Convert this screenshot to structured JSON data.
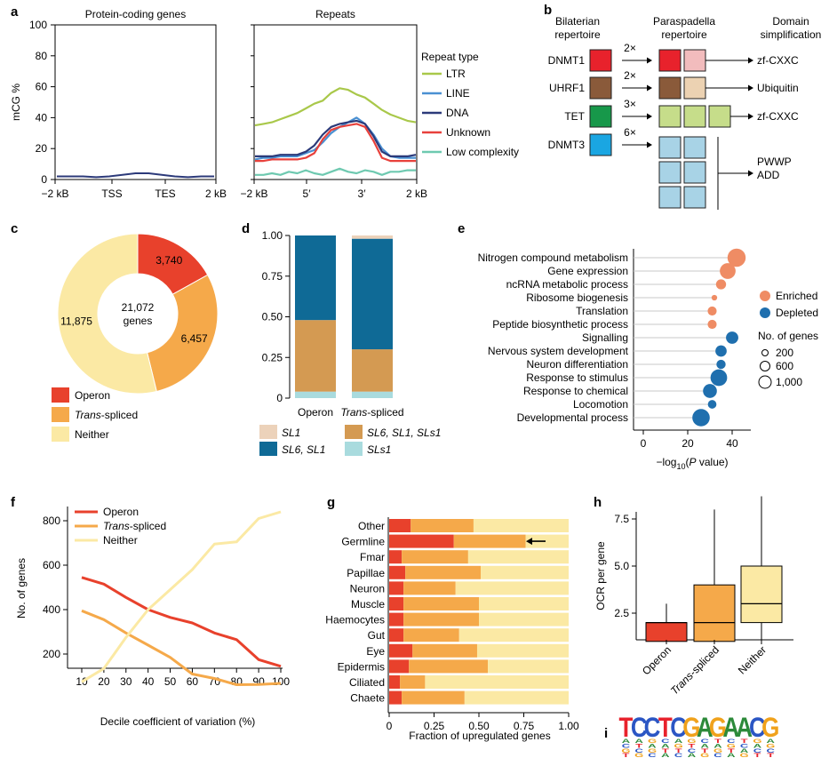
{
  "panel_labels": [
    "a",
    "b",
    "c",
    "d",
    "e",
    "f",
    "g",
    "h",
    "i"
  ],
  "chart_data": [
    {
      "id": "a1",
      "type": "line",
      "title": "Protein-coding genes",
      "ylabel": "mCG %",
      "ylim": [
        0,
        100
      ],
      "yticks": [
        0,
        20,
        40,
        60,
        80,
        100
      ],
      "xticklabels": [
        "−2 kB",
        "TSS",
        "TES",
        "2 kB"
      ],
      "series": [
        {
          "color": "#2c3a7a",
          "values": [
            2,
            2,
            2,
            1.5,
            2,
            3,
            4,
            4,
            3,
            2,
            1.5,
            2,
            2
          ]
        }
      ]
    },
    {
      "id": "a2",
      "type": "line",
      "title": "Repeats",
      "ylim": [
        0,
        100
      ],
      "xticklabels": [
        "−2 kB",
        "5′",
        "3′",
        "2 kB"
      ],
      "legend_title": "Repeat type",
      "series": [
        {
          "name": "LTR",
          "color": "#a9c84a",
          "values": [
            35,
            36,
            37,
            39,
            41,
            43,
            46,
            49,
            51,
            56,
            59,
            58,
            55,
            53,
            49,
            45,
            42,
            40,
            38,
            37
          ]
        },
        {
          "name": "LINE",
          "color": "#4a90d2",
          "values": [
            13,
            14,
            14,
            15,
            15,
            15,
            17,
            19,
            24,
            30,
            34,
            37,
            40,
            36,
            29,
            20,
            15,
            14,
            14,
            14
          ]
        },
        {
          "name": "DNA",
          "color": "#2c3a7a",
          "values": [
            15,
            15,
            15,
            16,
            16,
            16,
            18,
            22,
            29,
            34,
            36,
            37,
            38,
            36,
            28,
            18,
            15,
            15,
            15,
            16
          ]
        },
        {
          "name": "Unknown",
          "color": "#e8413c",
          "values": [
            12,
            12,
            13,
            13,
            13,
            13,
            14,
            17,
            26,
            32,
            34,
            35,
            36,
            34,
            25,
            14,
            12,
            12,
            12,
            12
          ]
        },
        {
          "name": "Low complexity",
          "color": "#6ec9b0",
          "values": [
            3,
            3,
            4,
            3,
            5,
            4,
            6,
            4,
            3,
            5,
            7,
            5,
            4,
            6,
            5,
            3,
            5,
            5,
            6,
            6
          ]
        }
      ]
    },
    {
      "id": "c",
      "type": "pie",
      "center_lines": [
        "21,072",
        "genes"
      ],
      "slices": [
        {
          "name": "Operon",
          "value": 3740,
          "label": "3,740",
          "color": "#e8412c"
        },
        {
          "name": "Trans-spliced",
          "value": 6457,
          "label": "6,457",
          "color": "#f5a94a"
        },
        {
          "name": "Neither",
          "value": 11875,
          "label": "11,875",
          "color": "#fbe9a4"
        }
      ],
      "legend": [
        {
          "name": "Operon",
          "color": "#e8412c"
        },
        {
          "name_italic": "Trans",
          "name_rest": "-spliced",
          "color": "#f5a94a"
        },
        {
          "name": "Neither",
          "color": "#fbe9a4"
        }
      ]
    },
    {
      "id": "d",
      "type": "bar",
      "stacked": true,
      "categories": [
        "Operon",
        "Trans-spliced"
      ],
      "ylim": [
        0,
        1
      ],
      "yticks": [
        "0",
        "0.25",
        "0.50",
        "0.75",
        "1.00"
      ],
      "series": [
        {
          "name": "SLs1",
          "color": "#a9dbde",
          "values": [
            0.04,
            0.04
          ]
        },
        {
          "name": "SL6, SL1, SLs1",
          "color": "#d49a52",
          "values": [
            0.44,
            0.26
          ]
        },
        {
          "name": "SL6, SL1",
          "color": "#0f6a96",
          "values": [
            0.52,
            0.68
          ]
        },
        {
          "name": "SL1",
          "color": "#ecd2ba",
          "values": [
            0.0,
            0.02
          ]
        }
      ]
    },
    {
      "id": "e",
      "type": "scatter",
      "xlabel": "−log10(P value)",
      "xlim": [
        0,
        45
      ],
      "xticks": [
        "0",
        "20",
        "40"
      ],
      "categories": [
        "Nitrogen compound metabolism",
        "Gene expression",
        "ncRNA metabolic process",
        "Ribosome biogenesis",
        "Translation",
        "Peptide biosynthetic process",
        "Signalling",
        "Nervous system development",
        "Neuron differentiation",
        "Response to stimulus",
        "Response to chemical",
        "Locomotion",
        "Developmental process"
      ],
      "x": [
        42,
        38,
        35,
        32,
        31,
        31,
        40,
        35,
        35,
        34,
        30,
        31,
        26
      ],
      "genes": [
        1000,
        700,
        200,
        20,
        140,
        140,
        360,
        280,
        150,
        800,
        500,
        120,
        900
      ],
      "status": [
        "Enriched",
        "Enriched",
        "Enriched",
        "Enriched",
        "Enriched",
        "Enriched",
        "Depleted",
        "Depleted",
        "Depleted",
        "Depleted",
        "Depleted",
        "Depleted",
        "Depleted"
      ],
      "legend": {
        "enriched": "Enriched",
        "depleted": "Depleted",
        "size_title": "No. of genes",
        "size_labels": [
          "200",
          "600",
          "1,000"
        ]
      },
      "colors": {
        "Enriched": "#ef8c64",
        "Depleted": "#1f6fae"
      }
    },
    {
      "id": "f",
      "type": "line",
      "xlabel": "Decile coefficient of variation (%)",
      "ylabel": "No. of genes",
      "x": [
        10,
        20,
        30,
        40,
        50,
        60,
        70,
        80,
        90,
        100
      ],
      "xticks": [
        "10",
        "20",
        "30",
        "40",
        "50",
        "60",
        "70",
        "80",
        "90",
        "100"
      ],
      "yticks": [
        "200",
        "400",
        "600",
        "800"
      ],
      "ylim": [
        40,
        870
      ],
      "series": [
        {
          "name": "Operon",
          "color": "#e8412c",
          "values": [
            545,
            515,
            455,
            400,
            365,
            340,
            295,
            265,
            175,
            145
          ]
        },
        {
          "name": "Trans-spliced",
          "color": "#f5a94a",
          "values": [
            395,
            355,
            295,
            240,
            185,
            110,
            90,
            62,
            63,
            68
          ]
        },
        {
          "name": "Neither",
          "color": "#fbe9a4",
          "values": [
            75,
            135,
            275,
            400,
            490,
            580,
            695,
            705,
            810,
            840
          ]
        }
      ]
    },
    {
      "id": "g",
      "type": "bar",
      "stacked": true,
      "orientation": "horizontal",
      "xlabel": "Fraction of upregulated genes",
      "xticks": [
        "0",
        "0.25",
        "0.50",
        "0.75",
        "1.00"
      ],
      "xlim": [
        0,
        1
      ],
      "categories": [
        "Other",
        "Germline",
        "Fmar",
        "Papillae",
        "Neuron",
        "Muscle",
        "Haemocytes",
        "Gut",
        "Eye",
        "Epidermis",
        "Ciliated",
        "Chaete"
      ],
      "series": [
        {
          "name": "Operon",
          "color": "#e8412c",
          "values": [
            0.12,
            0.36,
            0.07,
            0.09,
            0.08,
            0.08,
            0.08,
            0.08,
            0.13,
            0.11,
            0.06,
            0.07
          ]
        },
        {
          "name": "Trans-spliced",
          "color": "#f5a94a",
          "values": [
            0.35,
            0.4,
            0.37,
            0.42,
            0.29,
            0.42,
            0.42,
            0.31,
            0.36,
            0.44,
            0.14,
            0.35
          ]
        },
        {
          "name": "Neither",
          "color": "#fbe9a4",
          "values": [
            0.53,
            0.24,
            0.56,
            0.49,
            0.63,
            0.5,
            0.5,
            0.61,
            0.51,
            0.45,
            0.8,
            0.58
          ]
        }
      ],
      "arrow_category": "Germline"
    },
    {
      "id": "h",
      "type": "box",
      "ylabel": "OCR per gene",
      "yticks": [
        "2.5",
        "5.0",
        "7.5"
      ],
      "ylim": [
        0.3,
        8.7
      ],
      "categories": [
        "Operon",
        "Trans-spliced",
        "Neither"
      ],
      "boxes": [
        {
          "min": 1,
          "q1": 1,
          "median": 2,
          "q3": 2,
          "max": 3,
          "color": "#e8412c"
        },
        {
          "min": 1,
          "q1": 1,
          "median": 2,
          "q3": 4,
          "max": 8,
          "color": "#f5a94a"
        },
        {
          "min": 1,
          "q1": 2,
          "median": 3,
          "q3": 5,
          "max": 8.7,
          "color": "#fbe9a4"
        }
      ]
    }
  ],
  "diagram_b": {
    "col_headers": [
      [
        "Bilaterian",
        "repertoire"
      ],
      [
        "Paraspadella",
        "repertoire"
      ],
      [
        "Domain",
        "simplification"
      ]
    ],
    "rows": [
      {
        "name": "DNMT1",
        "color": "#e8222c",
        "mult": "2×",
        "copies": [
          "#e8222c",
          "#f2bcbd"
        ],
        "result": "zf-CXXC"
      },
      {
        "name": "UHRF1",
        "color": "#8a5a3a",
        "mult": "2×",
        "copies": [
          "#8a5a3a",
          "#ecd2b2"
        ],
        "result": "Ubiquitin"
      },
      {
        "name": "TET",
        "color": "#17984a",
        "mult": "3×",
        "copies": [
          "#c6dd8a",
          "#c6dd8a",
          "#c6dd8a"
        ],
        "result": "zf-CXXC"
      },
      {
        "name": "DNMT3",
        "color": "#1aa6e2",
        "mult": "6×",
        "copy_color": "#a8d3e6",
        "result_lines": [
          "PWWP",
          "ADD"
        ]
      }
    ]
  },
  "panel_i": {
    "letters": "TCCTCGAGAACG",
    "colors": {
      "A": "#2c8a3a",
      "C": "#2b56c4",
      "G": "#f0a21c",
      "T": "#e8222c"
    }
  }
}
